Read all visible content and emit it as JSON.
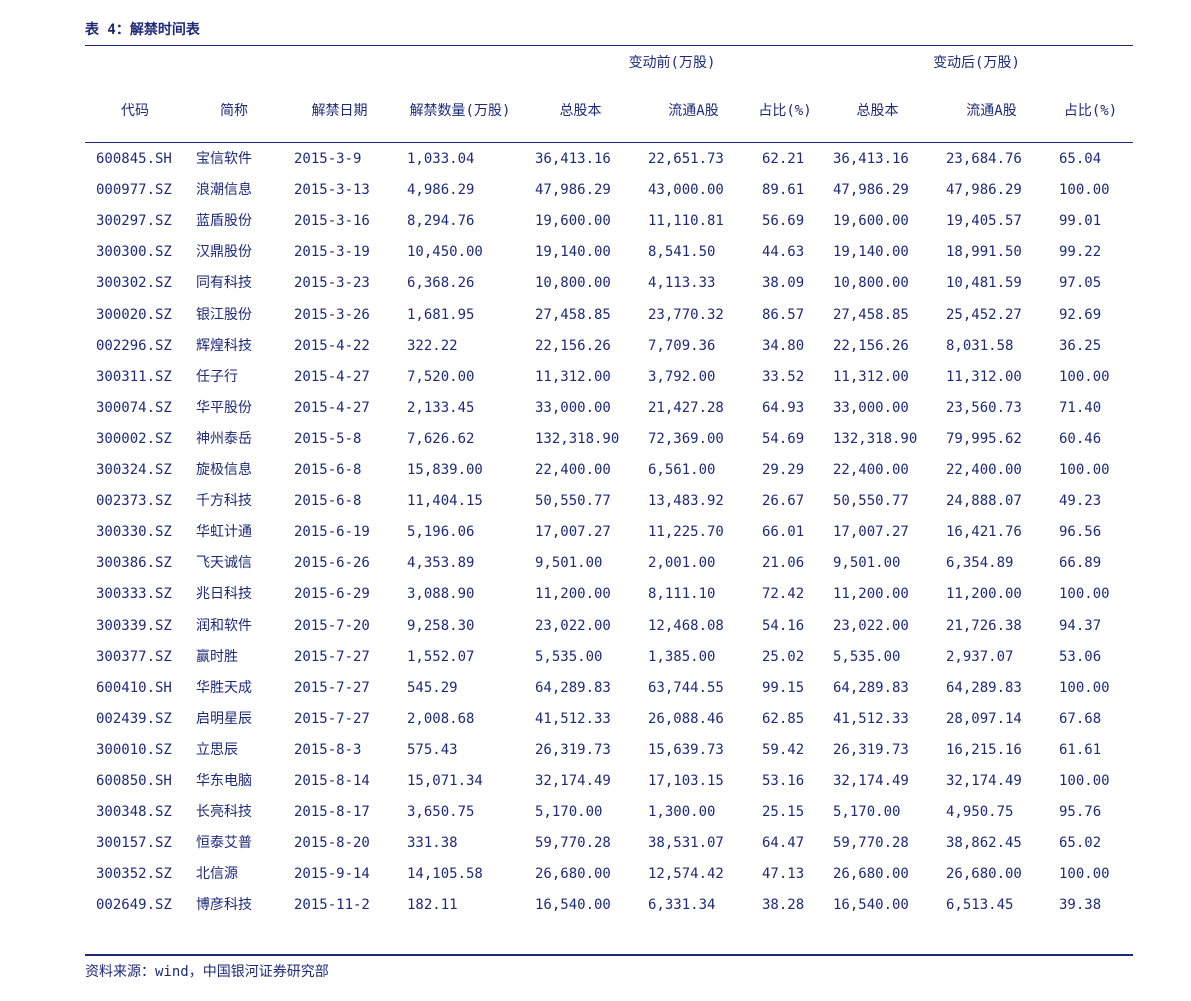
{
  "caption": "表 4：解禁时间表",
  "table": {
    "group_headers": [
      "变动前(万股)",
      "变动后(万股)"
    ],
    "headers": [
      "代码",
      "简称",
      "解禁日期",
      "解禁数量(万股)",
      "总股本",
      "流通A股",
      "占比(%)",
      "总股本",
      "流通A股",
      "占比(%)"
    ],
    "rows": [
      [
        "600845.SH",
        "宝信软件",
        "2015-3-9",
        "1,033.04",
        "36,413.16",
        "22,651.73",
        "62.21",
        "36,413.16",
        "23,684.76",
        "65.04"
      ],
      [
        "000977.SZ",
        "浪潮信息",
        "2015-3-13",
        "4,986.29",
        "47,986.29",
        "43,000.00",
        "89.61",
        "47,986.29",
        "47,986.29",
        "100.00"
      ],
      [
        "300297.SZ",
        "蓝盾股份",
        "2015-3-16",
        "8,294.76",
        "19,600.00",
        "11,110.81",
        "56.69",
        "19,600.00",
        "19,405.57",
        "99.01"
      ],
      [
        "300300.SZ",
        "汉鼎股份",
        "2015-3-19",
        "10,450.00",
        "19,140.00",
        "8,541.50",
        "44.63",
        "19,140.00",
        "18,991.50",
        "99.22"
      ],
      [
        "300302.SZ",
        "同有科技",
        "2015-3-23",
        "6,368.26",
        "10,800.00",
        "4,113.33",
        "38.09",
        "10,800.00",
        "10,481.59",
        "97.05"
      ],
      [
        "300020.SZ",
        "银江股份",
        "2015-3-26",
        "1,681.95",
        "27,458.85",
        "23,770.32",
        "86.57",
        "27,458.85",
        "25,452.27",
        "92.69"
      ],
      [
        "002296.SZ",
        "辉煌科技",
        "2015-4-22",
        "322.22",
        "22,156.26",
        "7,709.36",
        "34.80",
        "22,156.26",
        "8,031.58",
        "36.25"
      ],
      [
        "300311.SZ",
        "任子行",
        "2015-4-27",
        "7,520.00",
        "11,312.00",
        "3,792.00",
        "33.52",
        "11,312.00",
        "11,312.00",
        "100.00"
      ],
      [
        "300074.SZ",
        "华平股份",
        "2015-4-27",
        "2,133.45",
        "33,000.00",
        "21,427.28",
        "64.93",
        "33,000.00",
        "23,560.73",
        "71.40"
      ],
      [
        "300002.SZ",
        "神州泰岳",
        "2015-5-8",
        "7,626.62",
        "132,318.90",
        "72,369.00",
        "54.69",
        "132,318.90",
        "79,995.62",
        "60.46"
      ],
      [
        "300324.SZ",
        "旋极信息",
        "2015-6-8",
        "15,839.00",
        "22,400.00",
        "6,561.00",
        "29.29",
        "22,400.00",
        "22,400.00",
        "100.00"
      ],
      [
        "002373.SZ",
        "千方科技",
        "2015-6-8",
        "11,404.15",
        "50,550.77",
        "13,483.92",
        "26.67",
        "50,550.77",
        "24,888.07",
        "49.23"
      ],
      [
        "300330.SZ",
        "华虹计通",
        "2015-6-19",
        "5,196.06",
        "17,007.27",
        "11,225.70",
        "66.01",
        "17,007.27",
        "16,421.76",
        "96.56"
      ],
      [
        "300386.SZ",
        "飞天诚信",
        "2015-6-26",
        "4,353.89",
        "9,501.00",
        "2,001.00",
        "21.06",
        "9,501.00",
        "6,354.89",
        "66.89"
      ],
      [
        "300333.SZ",
        "兆日科技",
        "2015-6-29",
        "3,088.90",
        "11,200.00",
        "8,111.10",
        "72.42",
        "11,200.00",
        "11,200.00",
        "100.00"
      ],
      [
        "300339.SZ",
        "润和软件",
        "2015-7-20",
        "9,258.30",
        "23,022.00",
        "12,468.08",
        "54.16",
        "23,022.00",
        "21,726.38",
        "94.37"
      ],
      [
        "300377.SZ",
        "赢时胜",
        "2015-7-27",
        "1,552.07",
        "5,535.00",
        "1,385.00",
        "25.02",
        "5,535.00",
        "2,937.07",
        "53.06"
      ],
      [
        "600410.SH",
        "华胜天成",
        "2015-7-27",
        "545.29",
        "64,289.83",
        "63,744.55",
        "99.15",
        "64,289.83",
        "64,289.83",
        "100.00"
      ],
      [
        "002439.SZ",
        "启明星辰",
        "2015-7-27",
        "2,008.68",
        "41,512.33",
        "26,088.46",
        "62.85",
        "41,512.33",
        "28,097.14",
        "67.68"
      ],
      [
        "300010.SZ",
        "立思辰",
        "2015-8-3",
        "575.43",
        "26,319.73",
        "15,639.73",
        "59.42",
        "26,319.73",
        "16,215.16",
        "61.61"
      ],
      [
        "600850.SH",
        "华东电脑",
        "2015-8-14",
        "15,071.34",
        "32,174.49",
        "17,103.15",
        "53.16",
        "32,174.49",
        "32,174.49",
        "100.00"
      ],
      [
        "300348.SZ",
        "长亮科技",
        "2015-8-17",
        "3,650.75",
        "5,170.00",
        "1,300.00",
        "25.15",
        "5,170.00",
        "4,950.75",
        "95.76"
      ],
      [
        "300157.SZ",
        "恒泰艾普",
        "2015-8-20",
        "331.38",
        "59,770.28",
        "38,531.07",
        "64.47",
        "59,770.28",
        "38,862.45",
        "65.02"
      ],
      [
        "300352.SZ",
        "北信源",
        "2015-9-14",
        "14,105.58",
        "26,680.00",
        "12,574.42",
        "47.13",
        "26,680.00",
        "26,680.00",
        "100.00"
      ],
      [
        "002649.SZ",
        "博彦科技",
        "2015-11-2",
        "182.11",
        "16,540.00",
        "6,331.34",
        "38.28",
        "16,540.00",
        "6,513.45",
        "39.38"
      ]
    ]
  },
  "source": "资料来源：wind，中国银河证券研究部"
}
